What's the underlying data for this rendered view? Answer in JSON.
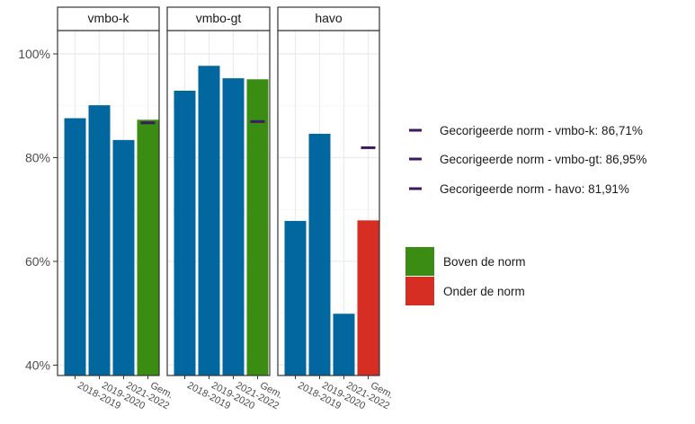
{
  "chart_data": {
    "type": "bar",
    "categories": [
      "2018-2019",
      "2019-2020",
      "2021-2022",
      "Gem."
    ],
    "y_ticks": [
      "40%",
      "60%",
      "80%",
      "100%"
    ],
    "ylim": [
      0.38,
      1.045
    ],
    "grid": true,
    "legend_position": "right",
    "panels": [
      {
        "name": "vmbo-k",
        "values": [
          0.876,
          0.901,
          0.834,
          0.873
        ],
        "norm": 0.8671,
        "average_status": "boven"
      },
      {
        "name": "vmbo-gt",
        "values": [
          0.929,
          0.977,
          0.953,
          0.951
        ],
        "norm": 0.8695,
        "average_status": "boven"
      },
      {
        "name": "havo",
        "values": [
          0.678,
          0.846,
          0.499,
          0.679
        ],
        "norm": 0.8191,
        "average_status": "onder"
      }
    ],
    "legend_norms": [
      "Gecorigeerde norm - vmbo-k: 86,71%",
      "Gecorigeerde norm - vmbo-gt: 86,95%",
      "Gecorigeerde norm - havo: 81,91%"
    ],
    "legend_status": [
      {
        "key": "boven",
        "label": "Boven de norm"
      },
      {
        "key": "onder",
        "label": "Onder de norm"
      }
    ],
    "colors": {
      "year_bar": "#02679e",
      "boven": "#3a8d12",
      "onder": "#d62e22",
      "norm": "#3c1a63",
      "grid": "#ebebeb",
      "panel_border": "#333333",
      "strip_fill": "#ffffff"
    }
  }
}
